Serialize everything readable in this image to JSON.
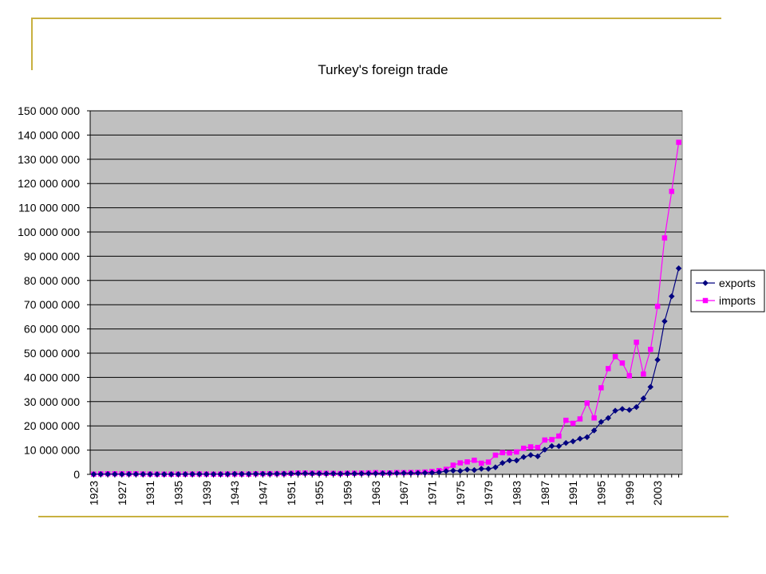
{
  "chart_data": {
    "type": "line",
    "title": "Turkey's foreign trade",
    "xlabel": "",
    "ylabel": "",
    "ylim": [
      0,
      150000000
    ],
    "yticks": [
      {
        "value": 0,
        "label": "0"
      },
      {
        "value": 10000000,
        "label": "10 000 000"
      },
      {
        "value": 20000000,
        "label": "20 000 000"
      },
      {
        "value": 30000000,
        "label": "30 000 000"
      },
      {
        "value": 40000000,
        "label": "40 000 000"
      },
      {
        "value": 50000000,
        "label": "50 000 000"
      },
      {
        "value": 60000000,
        "label": "60 000 000"
      },
      {
        "value": 70000000,
        "label": "70 000 000"
      },
      {
        "value": 80000000,
        "label": "80 000 000"
      },
      {
        "value": 90000000,
        "label": "90 000 000"
      },
      {
        "value": 100000000,
        "label": "100 000 000"
      },
      {
        "value": 110000000,
        "label": "110 000 000"
      },
      {
        "value": 120000000,
        "label": "120 000 000"
      },
      {
        "value": 130000000,
        "label": "130 000 000"
      },
      {
        "value": 140000000,
        "label": "140 000 000"
      },
      {
        "value": 150000000,
        "label": "150 000 000"
      }
    ],
    "x_tick_labels": [
      "1923",
      "1927",
      "1931",
      "1935",
      "1939",
      "1943",
      "1947",
      "1951",
      "1955",
      "1959",
      "1963",
      "1967",
      "1971",
      "1975",
      "1979",
      "1983",
      "1987",
      "1991",
      "1995",
      "1999",
      "2003"
    ],
    "grid": "horizontal",
    "plot_background": "#c0c0c0",
    "legend_position": "right",
    "x": [
      1923,
      1924,
      1925,
      1926,
      1927,
      1928,
      1929,
      1930,
      1931,
      1932,
      1933,
      1934,
      1935,
      1936,
      1937,
      1938,
      1939,
      1940,
      1941,
      1942,
      1943,
      1944,
      1945,
      1946,
      1947,
      1948,
      1949,
      1950,
      1951,
      1952,
      1953,
      1954,
      1955,
      1956,
      1957,
      1958,
      1959,
      1960,
      1961,
      1962,
      1963,
      1964,
      1965,
      1966,
      1967,
      1968,
      1969,
      1970,
      1971,
      1972,
      1973,
      1974,
      1975,
      1976,
      1977,
      1978,
      1979,
      1980,
      1981,
      1982,
      1983,
      1984,
      1985,
      1986,
      1987,
      1988,
      1989,
      1990,
      1991,
      1992,
      1993,
      1994,
      1995,
      1996,
      1997,
      1998,
      1999,
      2000,
      2001,
      2002,
      2003,
      2004,
      2005
    ],
    "series": [
      {
        "name": "exports",
        "color": "#000080",
        "marker": "diamond",
        "values": [
          51000,
          100000,
          103000,
          96000,
          80000,
          89000,
          85000,
          86000,
          69000,
          48000,
          58000,
          55000,
          46000,
          94000,
          109000,
          115000,
          100000,
          81000,
          91000,
          126000,
          197000,
          178000,
          168000,
          215000,
          223000,
          197000,
          248000,
          263000,
          314000,
          363000,
          396000,
          335000,
          313000,
          305000,
          345000,
          247000,
          354000,
          321000,
          347000,
          381000,
          368000,
          411000,
          464000,
          490000,
          523000,
          496000,
          537000,
          588000,
          677000,
          885000,
          1317000,
          1532000,
          1401000,
          1960000,
          1753000,
          2288000,
          2261000,
          2910000,
          4703000,
          5746000,
          5728000,
          7134000,
          7958000,
          7457000,
          10190000,
          11662000,
          11625000,
          12959000,
          13594000,
          14715000,
          15345000,
          18106000,
          21637000,
          23225000,
          26261000,
          26974000,
          26587000,
          27775000,
          31334000,
          36059000,
          47253000,
          63167000,
          73476000
        ]
      },
      {
        "name": "imports",
        "color": "#ff00ff",
        "marker": "square",
        "values": [
          87000,
          193000,
          242000,
          235000,
          212000,
          224000,
          256000,
          148000,
          126000,
          86000,
          75000,
          87000,
          89000,
          93000,
          114000,
          150000,
          118000,
          50000,
          75000,
          147000,
          155000,
          127000,
          97000,
          224000,
          245000,
          275000,
          290000,
          286000,
          402000,
          556000,
          533000,
          478000,
          498000,
          407000,
          397000,
          315000,
          470000,
          468000,
          509000,
          619000,
          688000,
          537000,
          572000,
          718000,
          685000,
          764000,
          801000,
          948000,
          1171000,
          1563000,
          2086000,
          3778000,
          4739000,
          5129000,
          5796000,
          4599000,
          5069000,
          7909000,
          8933000,
          8843000,
          9235000,
          10757000,
          11343000,
          11105000,
          14158000,
          14335000,
          15792000,
          22302000,
          21047000,
          22871000,
          29428000,
          23270000,
          35709000,
          43627000,
          48559000,
          45921000,
          40671000,
          54503000,
          41399000,
          51554000,
          69340000,
          97540000,
          116774000
        ]
      }
    ],
    "tail_points": [
      {
        "series": "imports",
        "x": 2006,
        "value": 137000000
      },
      {
        "series": "exports",
        "x": 2006,
        "value": 85000000
      }
    ]
  }
}
